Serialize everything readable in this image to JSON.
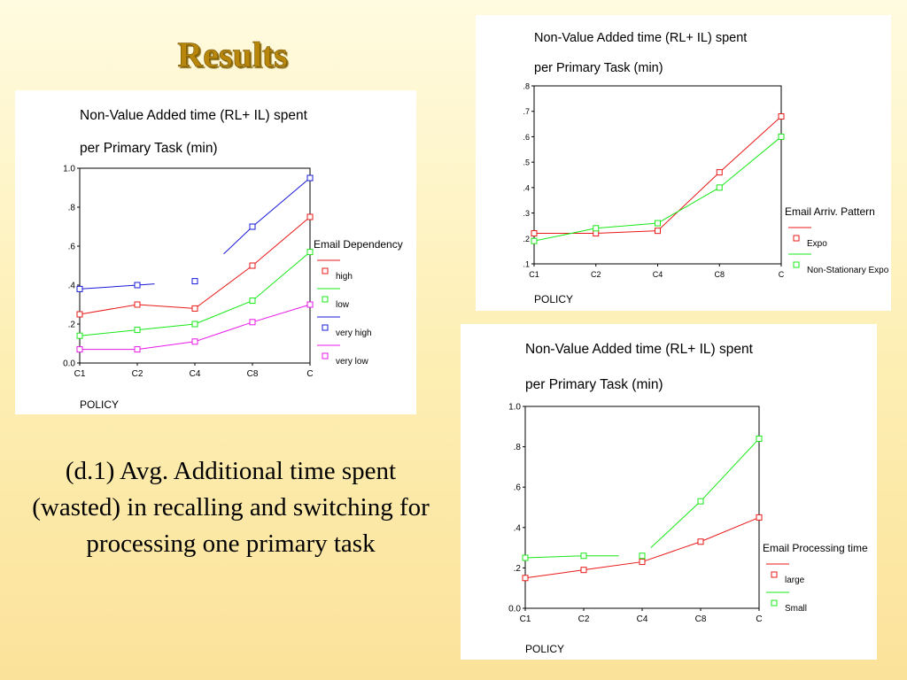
{
  "slide": {
    "title": "Results",
    "caption": "(d.1) Avg. Additional time spent (wasted) in recalling and switching for processing one primary task"
  },
  "chart_data": [
    {
      "type": "line",
      "title": "Non-Value Added time (RL+ IL) spent",
      "subtitle": "per Primary Task (min)",
      "xlabel": "POLICY",
      "categories": [
        "C1",
        "C2",
        "C4",
        "C8",
        "C"
      ],
      "ylim": [
        0,
        1.0
      ],
      "yticks": [
        0.0,
        0.2,
        0.4,
        0.6,
        0.8,
        1.0
      ],
      "ytick_labels": [
        "0.0",
        ".2",
        ".4",
        ".6",
        ".8",
        "1.0"
      ],
      "legend_title": "Email Dependency",
      "legend_position": "right",
      "series": [
        {
          "name": "high",
          "color": "#e81818",
          "values": [
            0.25,
            0.3,
            0.28,
            0.5,
            0.75
          ],
          "segments": [
            [
              0,
              4
            ]
          ]
        },
        {
          "name": "low",
          "color": "#18e818",
          "values": [
            0.14,
            0.17,
            0.2,
            0.32,
            0.57
          ],
          "segments": [
            [
              0,
              4
            ]
          ]
        },
        {
          "name": "very high",
          "color": "#1818d8",
          "values": [
            0.38,
            0.4,
            0.42,
            0.7,
            0.95
          ],
          "segments": [
            [
              0,
              1.3
            ],
            [
              2.5,
              4
            ]
          ]
        },
        {
          "name": "very low",
          "color": "#e818e8",
          "values": [
            0.07,
            0.07,
            0.11,
            0.21,
            0.3
          ],
          "segments": [
            [
              0,
              4
            ]
          ]
        }
      ]
    },
    {
      "type": "line",
      "title": "Non-Value Added time (RL+ IL) spent",
      "subtitle": "per Primary Task (min)",
      "xlabel": "POLICY",
      "categories": [
        "C1",
        "C2",
        "C4",
        "C8",
        "C"
      ],
      "ylim": [
        0.1,
        0.8
      ],
      "yticks": [
        0.1,
        0.2,
        0.3,
        0.4,
        0.5,
        0.6,
        0.7,
        0.8
      ],
      "ytick_labels": [
        ".1",
        ".2",
        ".3",
        ".4",
        ".5",
        ".6",
        ".7",
        ".8"
      ],
      "legend_title": "Email Arriv. Pattern",
      "legend_position": "right",
      "series": [
        {
          "name": "Expo",
          "color": "#e81818",
          "values": [
            0.22,
            0.22,
            0.23,
            0.46,
            0.68
          ],
          "segments": [
            [
              0,
              4
            ]
          ]
        },
        {
          "name": "Non-Stationary Expo",
          "color": "#18e818",
          "values": [
            0.19,
            0.24,
            0.26,
            0.4,
            0.6
          ],
          "segments": [
            [
              0,
              4
            ]
          ]
        }
      ]
    },
    {
      "type": "line",
      "title": "Non-Value Added time (RL+ IL) spent",
      "subtitle": "per Primary Task (min)",
      "xlabel": "POLICY",
      "categories": [
        "C1",
        "C2",
        "C4",
        "C8",
        "C"
      ],
      "ylim": [
        0,
        1.0
      ],
      "yticks": [
        0.0,
        0.2,
        0.4,
        0.6,
        0.8,
        1.0
      ],
      "ytick_labels": [
        "0.0",
        ".2",
        ".4",
        ".6",
        ".8",
        "1.0"
      ],
      "legend_title": "Email Processing time",
      "legend_position": "right",
      "series": [
        {
          "name": "large",
          "color": "#e81818",
          "values": [
            0.15,
            0.19,
            0.23,
            0.33,
            0.45
          ],
          "segments": [
            [
              0,
              4
            ]
          ]
        },
        {
          "name": "Small",
          "color": "#18e818",
          "values": [
            0.25,
            0.26,
            0.26,
            0.53,
            0.84
          ],
          "segments": [
            [
              0,
              1.6
            ],
            [
              2.15,
              4
            ]
          ]
        }
      ]
    }
  ]
}
